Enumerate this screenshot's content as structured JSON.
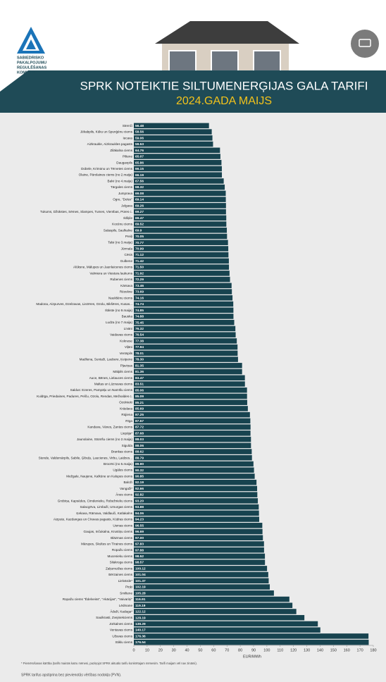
{
  "logo": {
    "lines": [
      "SABIEDRISKO",
      "PAKALPOJUMU",
      "REGULĒŠANAS",
      "KOMISIJA"
    ]
  },
  "chart_data": {
    "type": "bar",
    "orientation": "horizontal",
    "title": "SPRK NOTEIKTIE SILTUMENERĢIJAS GALA TARIFI",
    "subtitle": "2024.GADA MAIJS",
    "xlabel": "EUR/MWh",
    "color": "#17434f",
    "categories": [
      "Strenči",
      "Jēkabpils, Kūku un Spunģēnu ciems",
      "Iecava",
      "Aizkraukle, Aizkraukles pagasts",
      "Zilākalna ciems",
      "Piltene",
      "Daugavpils",
      "Dobele, Krimūnu un Tērvetes ciems",
      "Olaine, Pārolaines ciems (no 2.maija)",
      "Balvi (no 4.maija)",
      "Tārgales ciems",
      "Jumprava",
      "Ogre, \"Dolex\"",
      "Jelgava",
      "Tukums, Džūkstes, Sēmes, Slampes, Tumes, Vienības, Pūres c.",
      "Ikšķile",
      "Kocēnu ciems",
      "Salaspils, Saulkalne",
      "Preiļi",
      "Talsi (no 3.maija)",
      "Jūrmala",
      "Cēsis",
      "Gulbene",
      "Alūksne, Mālupes un Jaunlaicenes ciems",
      "Valmiera un Viestura laukums",
      "Rubenes ciems",
      "Kārsava",
      "Rēzekne",
      "Naukšēnu ciems",
      "Madona, Aizpurves, Dzelzavas, Liezēres, Ozolu, Bikšēres, Kusas...",
      "Ilūkste (no 9.maija)",
      "Bauska",
      "Ludza (no 7.maija)",
      "Līvāni",
      "Vaidavas ciems",
      "Koknese",
      "Viļāni",
      "Ventspils",
      "Madliena, Suntaži, Laubere, Ķeipene",
      "Pļaviņas",
      "Mālpils ciems",
      "Auce, Bēnes, Lielauces ciems",
      "Maltas un Lūznavas ciems",
      "Saldus: Ezeres, Pampāļu un Namīšu ciems",
      "Kuldīga, Priedaines, Padures, Pelču, Ozolu, Rendas, Mežvaldes c.",
      "Ozolnieki",
      "Krāslava",
      "Rūjiena",
      "Rīga",
      "Kandava, Vānes, Zantes ciems",
      "Liepāja*",
      "Jaunolaine, Stūnīšu ciems (no 2.maija)",
      "Sigulda",
      "Brankas ciems",
      "Stende, Valdemārpils, Sabile, Ģibuļu, Laucienes, Virbu, Laidzes...",
      "Brocēni (no 5.maija)",
      "Ugāles ciems",
      "Mežgale, Naujene, Kalkūne un Kalupes ciems",
      "Baloži",
      "Vangaži*",
      "Ānes ciems",
      "Grobiņa, Kapsēdes, Cimdenieku, Robežnieku ciems",
      "Salacgrīva, Limbaži, Umurgas ciems",
      "Ķekava, Rāmava, Valdlauči, Katlakalns",
      "Aizpute, Kazdangas un Cīravas pagasts, Kūdras ciems",
      "Usmas ciems",
      "Gaujas, Inčukalna, Krustiņu ciems",
      "Blāzmas ciems",
      "Mārupes, Skultes un Tīraines ciems",
      "Ropažu ciems",
      "Mucenieku ciems",
      "Silakroga ciems",
      "Zaķumuižas ciems",
      "Bērzaines ciems",
      "Lielvārde*",
      "Piņķi",
      "Smiltene",
      "Ropažu ciems \"Ēdelveiss\", \"Akācijas\", \"Vaivariņi\"",
      "Lēdmane",
      "Ādaži, Kadaga*",
      "Saulkrasti, Zvejniekciems",
      "Jūrkalnes ciems",
      "Ventavas ciems",
      "Užavas ciems",
      "Stiklu ciems"
    ],
    "values": [
      56.48,
      58.56,
      59.06,
      59.53,
      64.76,
      65.07,
      65.86,
      66.15,
      66.19,
      67.56,
      68.32,
      69.08,
      69.14,
      69.26,
      69.27,
      69.47,
      69.52,
      69.9,
      70.05,
      70.77,
      70.99,
      71.12,
      71.42,
      71.5,
      71.92,
      72.29,
      73.46,
      73.69,
      74.16,
      74.74,
      74.85,
      74.88,
      75.45,
      76.32,
      76.54,
      77.38,
      77.94,
      78.01,
      78.3,
      81.35,
      81.36,
      83.47,
      83.51,
      85.06,
      85.09,
      85.21,
      85.69,
      87.25,
      87.57,
      87.72,
      87.68,
      88.03,
      88.06,
      88.62,
      88.79,
      89.9,
      90.32,
      90.85,
      92.19,
      92.66,
      92.82,
      93.2,
      93.88,
      94.06,
      94.23,
      96.55,
      96.69,
      97,
      97.83,
      97.88,
      98.52,
      98.57,
      100.12,
      101.04,
      101.37,
      102.19,
      105.28,
      116.91,
      119.19,
      122.12,
      128.19,
      138.29,
      140.17,
      176.36,
      176.54
    ],
    "value_labels": [
      "56.48",
      "58.56",
      "59.06",
      "59.53",
      "64.76",
      "65.07",
      "65.86",
      "66.15",
      "66.19",
      "67.56",
      "68.32",
      "69.08",
      "69.14",
      "69.26",
      "69.27",
      "69.47",
      "69.52",
      "69.9",
      "70.05",
      "70.77",
      "70.99",
      "71.12",
      "71.42",
      "71.50",
      "71.92",
      "72.29",
      "73.46",
      "73.69",
      "74.16",
      "74.74",
      "74.85",
      "74.88",
      "75.45",
      "76.32",
      "76.54",
      "77.38",
      "77.94",
      "78.01",
      "78.30",
      "81.35",
      "81.36",
      "83.47",
      "83.51",
      "85.06",
      "85.09",
      "85.21",
      "85.69",
      "87.25",
      "87.57",
      "87.72",
      "87.68",
      "88.03",
      "88.06",
      "88.62",
      "88.79",
      "89.90",
      "90.32",
      "90.85",
      "92.19",
      "92.66",
      "92.82",
      "93.20",
      "93.88",
      "94.06",
      "94.23",
      "96.55",
      "96.69",
      "97.00",
      "97.83",
      "97.88",
      "98.52",
      "98.57",
      "100.12",
      "101.04",
      "101.37",
      "102.19",
      "105.28",
      "116.91",
      "119.19",
      "122.12",
      "128.19",
      "138.29",
      "140.17",
      "176.36",
      "176.54"
    ],
    "xlim": [
      0,
      180
    ],
    "xticks": [
      0,
      10,
      20,
      30,
      40,
      50,
      60,
      70,
      80,
      90,
      100,
      110,
      120,
      130,
      140,
      150,
      160,
      170,
      180
    ],
    "notes": [
      "* Piemērošanas kārtība (tarifs mainās katru mēnesi, paziņojot SPRK aktuālo tarifu konkrētajam mēnesim. Tarifi maijam vēl nav zināmi).",
      "SPRK tarifus apstiprina bez pievienotās vērtības nodokļa (PVN)."
    ]
  }
}
